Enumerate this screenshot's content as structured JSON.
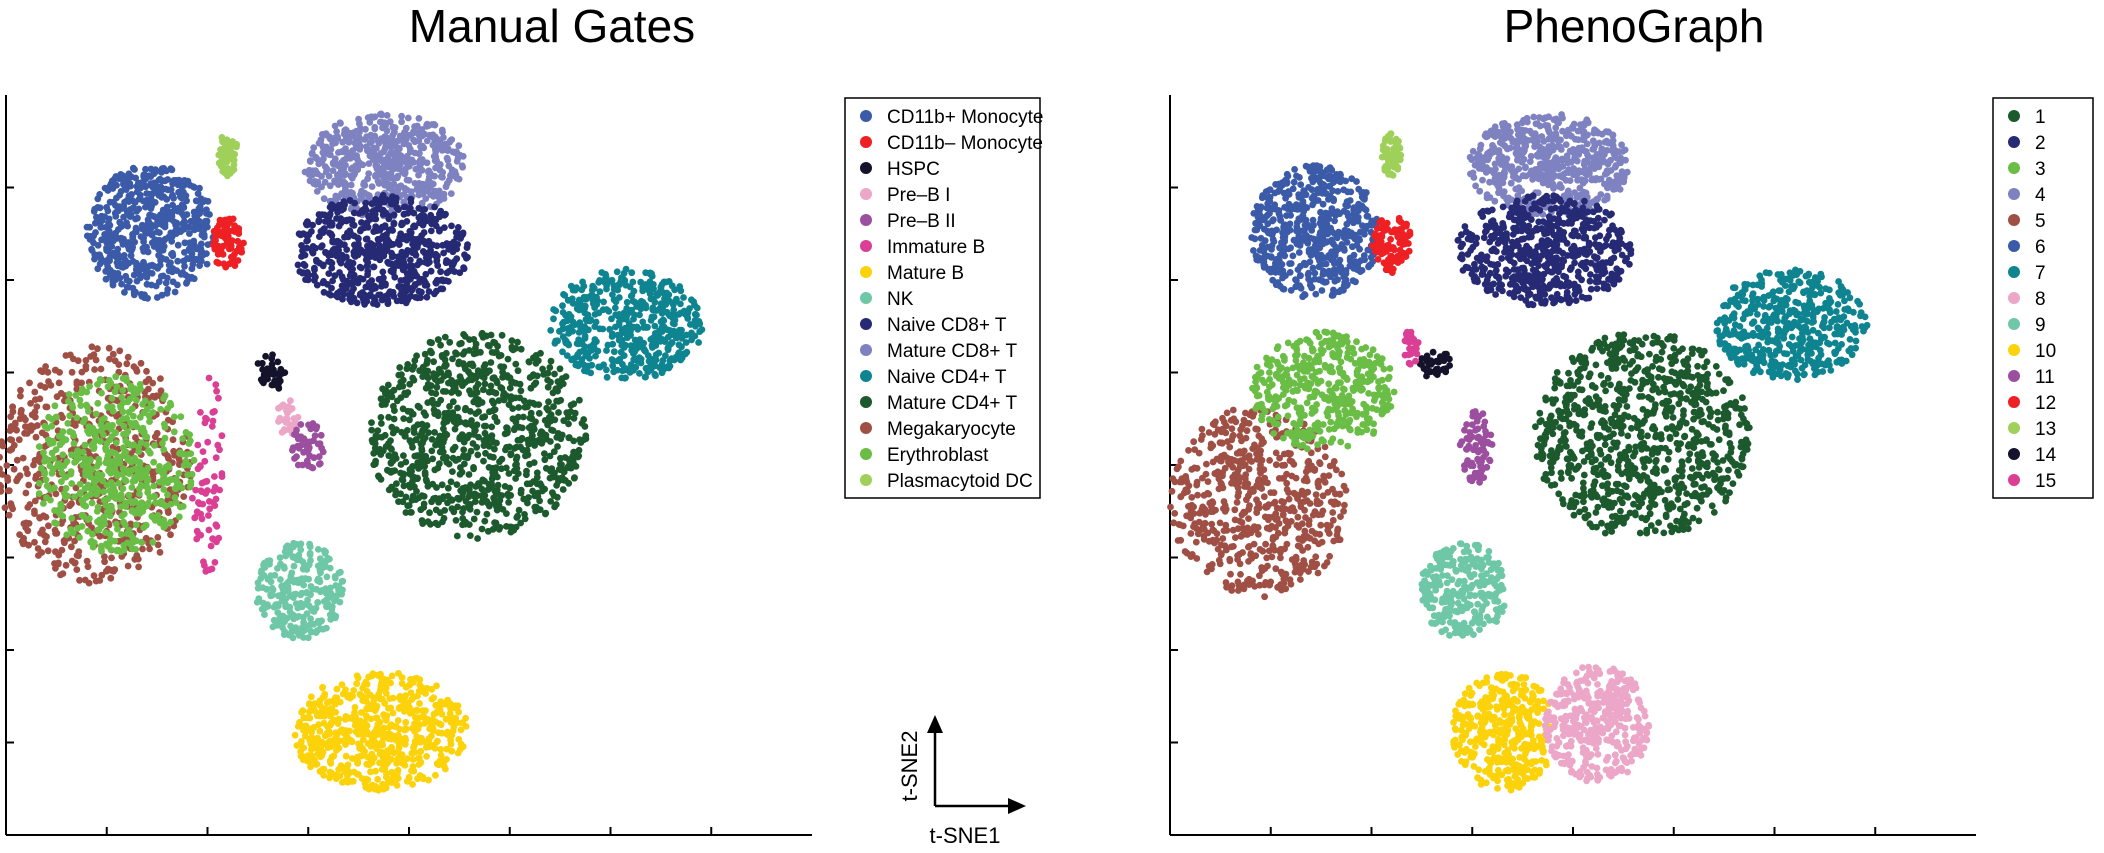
{
  "chart_data": [
    {
      "type": "scatter",
      "title": "Manual Gates",
      "legend": {
        "placement": "top-right",
        "entries": [
          {
            "name": "CD11b+ Monocyte",
            "color": "#3b5ba9"
          },
          {
            "name": "CD11b– Monocyte",
            "color": "#ee2024"
          },
          {
            "name": "HSPC",
            "color": "#14132b"
          },
          {
            "name": "Pre–B I",
            "color": "#eca7c8"
          },
          {
            "name": "Pre–B II",
            "color": "#9b4f9e"
          },
          {
            "name": "Immature B",
            "color": "#db3f95"
          },
          {
            "name": "Mature B",
            "color": "#fcd20a"
          },
          {
            "name": "NK",
            "color": "#6ec7a7"
          },
          {
            "name": "Naive CD8+ T",
            "color": "#262a74"
          },
          {
            "name": "Mature CD8+ T",
            "color": "#7f82c0"
          },
          {
            "name": "Naive CD4+ T",
            "color": "#0e8491"
          },
          {
            "name": "Mature CD4+ T",
            "color": "#1c5a2e"
          },
          {
            "name": "Megakaryocyte",
            "color": "#a04f45"
          },
          {
            "name": "Erythroblast",
            "color": "#6abd45"
          },
          {
            "name": "Plasmacytoid DC",
            "color": "#9fd15a"
          }
        ]
      },
      "clusters": [
        {
          "label": "CD11b+ Monocyte",
          "cx": -0.64,
          "cy": 0.63,
          "rx": 0.16,
          "ry": 0.18,
          "n": 560
        },
        {
          "label": "CD11b– Monocyte",
          "cx": -0.45,
          "cy": 0.6,
          "rx": 0.04,
          "ry": 0.07,
          "n": 90
        },
        {
          "label": "Plasmacytoid DC",
          "cx": -0.45,
          "cy": 0.84,
          "rx": 0.025,
          "ry": 0.06,
          "n": 60
        },
        {
          "label": "Mature CD8+ T",
          "cx": -0.06,
          "cy": 0.81,
          "rx": 0.2,
          "ry": 0.14,
          "n": 560
        },
        {
          "label": "Naive CD8+ T",
          "cx": -0.07,
          "cy": 0.58,
          "rx": 0.22,
          "ry": 0.15,
          "n": 600
        },
        {
          "label": "Naive CD4+ T",
          "cx": 0.54,
          "cy": 0.38,
          "rx": 0.19,
          "ry": 0.15,
          "n": 480
        },
        {
          "label": "Mature CD4+ T",
          "cx": 0.17,
          "cy": 0.08,
          "rx": 0.27,
          "ry": 0.28,
          "n": 900
        },
        {
          "label": "Megakaryocyte",
          "cx": -0.78,
          "cy": 0.0,
          "rx": 0.24,
          "ry": 0.32,
          "n": 560
        },
        {
          "label": "Erythroblast",
          "cx": -0.73,
          "cy": 0.0,
          "rx": 0.2,
          "ry": 0.24,
          "n": 520
        },
        {
          "label": "HSPC",
          "cx": -0.34,
          "cy": 0.25,
          "rx": 0.04,
          "ry": 0.05,
          "n": 40
        },
        {
          "label": "Pre–B I",
          "cx": -0.3,
          "cy": 0.13,
          "rx": 0.03,
          "ry": 0.05,
          "n": 30
        },
        {
          "label": "Pre–B II",
          "cx": -0.25,
          "cy": 0.05,
          "rx": 0.04,
          "ry": 0.07,
          "n": 50
        },
        {
          "label": "Immature B",
          "cx": -0.5,
          "cy": -0.02,
          "rx": 0.04,
          "ry": 0.28,
          "n": 70
        },
        {
          "label": "NK",
          "cx": -0.27,
          "cy": -0.34,
          "rx": 0.11,
          "ry": 0.13,
          "n": 250
        },
        {
          "label": "Mature B",
          "cx": -0.07,
          "cy": -0.72,
          "rx": 0.22,
          "ry": 0.16,
          "n": 620
        }
      ]
    },
    {
      "type": "scatter",
      "title": "PhenoGraph",
      "legend": {
        "placement": "top-right",
        "entries": [
          {
            "name": "1",
            "color": "#1c5a2e"
          },
          {
            "name": "2",
            "color": "#262a74"
          },
          {
            "name": "3",
            "color": "#6abd45"
          },
          {
            "name": "4",
            "color": "#7f82c0"
          },
          {
            "name": "5",
            "color": "#a04f45"
          },
          {
            "name": "6",
            "color": "#3b5ba9"
          },
          {
            "name": "7",
            "color": "#0e8491"
          },
          {
            "name": "8",
            "color": "#eca7c8"
          },
          {
            "name": "9",
            "color": "#6ec7a7"
          },
          {
            "name": "10",
            "color": "#fcd20a"
          },
          {
            "name": "11",
            "color": "#9b4f9e"
          },
          {
            "name": "12",
            "color": "#ee2024"
          },
          {
            "name": "13",
            "color": "#9fd15a"
          },
          {
            "name": "14",
            "color": "#14132b"
          },
          {
            "name": "15",
            "color": "#db3f95"
          }
        ]
      },
      "clusters": [
        {
          "label": "6",
          "cx": -0.64,
          "cy": 0.63,
          "rx": 0.16,
          "ry": 0.18,
          "n": 560
        },
        {
          "label": "12",
          "cx": -0.45,
          "cy": 0.6,
          "rx": 0.05,
          "ry": 0.08,
          "n": 100
        },
        {
          "label": "13",
          "cx": -0.45,
          "cy": 0.84,
          "rx": 0.025,
          "ry": 0.06,
          "n": 60
        },
        {
          "label": "4",
          "cx": -0.06,
          "cy": 0.81,
          "rx": 0.2,
          "ry": 0.14,
          "n": 560
        },
        {
          "label": "2",
          "cx": -0.07,
          "cy": 0.58,
          "rx": 0.22,
          "ry": 0.15,
          "n": 600
        },
        {
          "label": "7",
          "cx": 0.54,
          "cy": 0.38,
          "rx": 0.19,
          "ry": 0.15,
          "n": 480
        },
        {
          "label": "1",
          "cx": 0.17,
          "cy": 0.08,
          "rx": 0.27,
          "ry": 0.28,
          "n": 900
        },
        {
          "label": "5",
          "cx": -0.78,
          "cy": -0.1,
          "rx": 0.22,
          "ry": 0.26,
          "n": 600
        },
        {
          "label": "3",
          "cx": -0.62,
          "cy": 0.2,
          "rx": 0.18,
          "ry": 0.16,
          "n": 420
        },
        {
          "label": "14",
          "cx": -0.34,
          "cy": 0.27,
          "rx": 0.04,
          "ry": 0.04,
          "n": 40
        },
        {
          "label": "15",
          "cx": -0.4,
          "cy": 0.32,
          "rx": 0.02,
          "ry": 0.05,
          "n": 30
        },
        {
          "label": "11",
          "cx": -0.24,
          "cy": 0.05,
          "rx": 0.04,
          "ry": 0.1,
          "n": 80
        },
        {
          "label": "9",
          "cx": -0.27,
          "cy": -0.34,
          "rx": 0.11,
          "ry": 0.13,
          "n": 250
        },
        {
          "label": "10",
          "cx": -0.17,
          "cy": -0.72,
          "rx": 0.13,
          "ry": 0.16,
          "n": 380
        },
        {
          "label": "8",
          "cx": 0.06,
          "cy": -0.7,
          "rx": 0.13,
          "ry": 0.16,
          "n": 380
        }
      ]
    }
  ],
  "axes_key": {
    "x_label": "t-SNE1",
    "y_label": "t-SNE2"
  }
}
